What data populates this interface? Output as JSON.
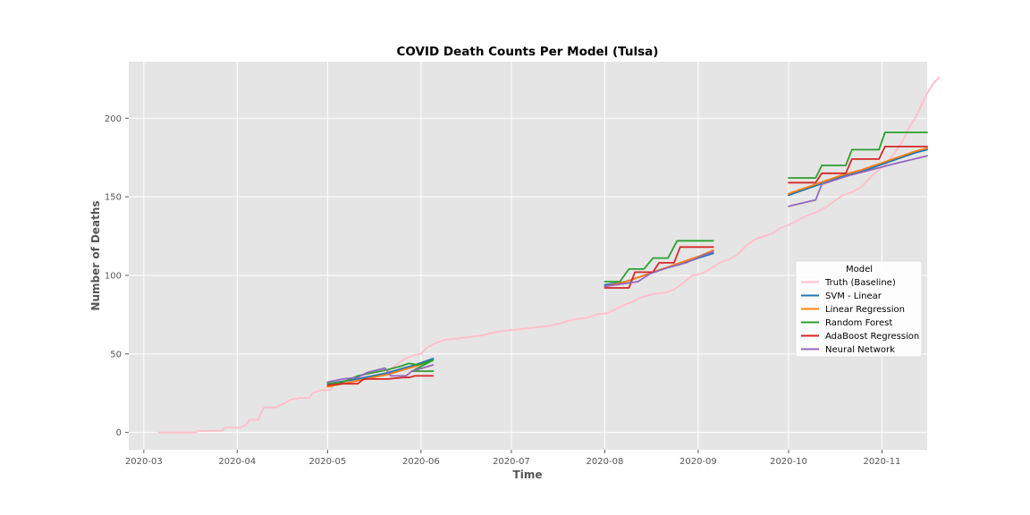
{
  "chart_data": {
    "type": "line",
    "title": "COVID Death Counts Per Model (Tulsa)",
    "xlabel": "Time",
    "ylabel": "Number of Deaths",
    "x_type": "date",
    "xlim": [
      "2020-02-25",
      "2020-11-16"
    ],
    "ylim": [
      -11,
      236
    ],
    "grid": true,
    "x_ticks": [
      "2020-03",
      "2020-04",
      "2020-05",
      "2020-06",
      "2020-07",
      "2020-08",
      "2020-09",
      "2020-10",
      "2020-11"
    ],
    "x_tick_dates": [
      "2020-03-01",
      "2020-04-01",
      "2020-05-01",
      "2020-06-01",
      "2020-07-01",
      "2020-08-01",
      "2020-09-01",
      "2020-10-01",
      "2020-11-01"
    ],
    "y_ticks": [
      0,
      50,
      100,
      150,
      200
    ],
    "legend": {
      "title": "Model",
      "position": "right"
    },
    "colors": {
      "background": "#e5e5e5",
      "grid": "#ffffff",
      "truth": "#ffc0cb",
      "svm": "#1f77b4",
      "linear": "#ff7f0e",
      "rf": "#2ca02c",
      "ada": "#d62728",
      "nn": "#9467bd"
    },
    "series": [
      {
        "name": "Truth (Baseline)",
        "color": "#ffc0cb",
        "points": [
          [
            "2020-03-06",
            0
          ],
          [
            "2020-03-18",
            0
          ],
          [
            "2020-03-19",
            1
          ],
          [
            "2020-03-26",
            1
          ],
          [
            "2020-03-27",
            1
          ],
          [
            "2020-03-28",
            3
          ],
          [
            "2020-04-02",
            3
          ],
          [
            "2020-04-04",
            5
          ],
          [
            "2020-04-05",
            8
          ],
          [
            "2020-04-08",
            8
          ],
          [
            "2020-04-09",
            13
          ],
          [
            "2020-04-10",
            16
          ],
          [
            "2020-04-14",
            16
          ],
          [
            "2020-04-16",
            18
          ],
          [
            "2020-04-19",
            21
          ],
          [
            "2020-04-22",
            22
          ],
          [
            "2020-04-25",
            22
          ],
          [
            "2020-04-26",
            25
          ],
          [
            "2020-04-29",
            27
          ],
          [
            "2020-05-02",
            27
          ],
          [
            "2020-05-03",
            31
          ],
          [
            "2020-05-06",
            32
          ],
          [
            "2020-05-10",
            33
          ],
          [
            "2020-05-13",
            35
          ],
          [
            "2020-05-17",
            36
          ],
          [
            "2020-05-20",
            37
          ],
          [
            "2020-05-23",
            42
          ],
          [
            "2020-05-26",
            46
          ],
          [
            "2020-05-29",
            49
          ],
          [
            "2020-06-01",
            50
          ],
          [
            "2020-06-03",
            54
          ],
          [
            "2020-06-06",
            57
          ],
          [
            "2020-06-09",
            59
          ],
          [
            "2020-06-14",
            60
          ],
          [
            "2020-06-18",
            61
          ],
          [
            "2020-06-22",
            62
          ],
          [
            "2020-06-26",
            64
          ],
          [
            "2020-06-30",
            65
          ],
          [
            "2020-07-05",
            66
          ],
          [
            "2020-07-10",
            67
          ],
          [
            "2020-07-14",
            68
          ],
          [
            "2020-07-18",
            70
          ],
          [
            "2020-07-22",
            72
          ],
          [
            "2020-07-26",
            73
          ],
          [
            "2020-07-29",
            75
          ],
          [
            "2020-08-02",
            76
          ],
          [
            "2020-08-06",
            80
          ],
          [
            "2020-08-10",
            83
          ],
          [
            "2020-08-13",
            86
          ],
          [
            "2020-08-17",
            88
          ],
          [
            "2020-08-21",
            89
          ],
          [
            "2020-08-24",
            91
          ],
          [
            "2020-08-27",
            95
          ],
          [
            "2020-08-30",
            100
          ],
          [
            "2020-09-02",
            101
          ],
          [
            "2020-09-05",
            104
          ],
          [
            "2020-09-08",
            108
          ],
          [
            "2020-09-11",
            110
          ],
          [
            "2020-09-14",
            113
          ],
          [
            "2020-09-17",
            119
          ],
          [
            "2020-09-20",
            123
          ],
          [
            "2020-09-23",
            125
          ],
          [
            "2020-09-26",
            127
          ],
          [
            "2020-09-28",
            130
          ],
          [
            "2020-10-01",
            132
          ],
          [
            "2020-10-04",
            135
          ],
          [
            "2020-10-07",
            138
          ],
          [
            "2020-10-10",
            140
          ],
          [
            "2020-10-13",
            143
          ],
          [
            "2020-10-16",
            147
          ],
          [
            "2020-10-19",
            151
          ],
          [
            "2020-10-22",
            153
          ],
          [
            "2020-10-25",
            156
          ],
          [
            "2020-10-27",
            160
          ],
          [
            "2020-10-29",
            164
          ],
          [
            "2020-10-31",
            167
          ],
          [
            "2020-11-02",
            170
          ],
          [
            "2020-11-04",
            175
          ],
          [
            "2020-11-06",
            180
          ],
          [
            "2020-11-08",
            186
          ],
          [
            "2020-11-10",
            194
          ],
          [
            "2020-11-12",
            200
          ],
          [
            "2020-11-14",
            208
          ],
          [
            "2020-11-16",
            216
          ],
          [
            "2020-11-18",
            222
          ],
          [
            "2020-11-20",
            226
          ]
        ]
      },
      {
        "name": "SVM - Linear",
        "color": "#1f77b4",
        "segments": [
          [
            [
              "2020-05-01",
              31
            ],
            [
              "2020-05-11",
              34
            ],
            [
              "2020-05-21",
              38
            ],
            [
              "2020-05-30",
              43
            ],
            [
              "2020-06-05",
              47
            ]
          ],
          [
            [
              "2020-08-01",
              94
            ],
            [
              "2020-08-08",
              96
            ],
            [
              "2020-08-14",
              100
            ],
            [
              "2020-08-20",
              104
            ],
            [
              "2020-08-26",
              107
            ],
            [
              "2020-09-01",
              111
            ],
            [
              "2020-09-06",
              114
            ]
          ],
          [
            [
              "2020-10-01",
              151
            ],
            [
              "2020-10-07",
              155
            ],
            [
              "2020-10-13",
              159
            ],
            [
              "2020-10-19",
              163
            ],
            [
              "2020-10-25",
              166
            ],
            [
              "2020-10-31",
              170
            ],
            [
              "2020-11-06",
              174
            ],
            [
              "2020-11-12",
              178
            ],
            [
              "2020-11-16",
              180
            ]
          ]
        ]
      },
      {
        "name": "Linear Regression",
        "color": "#ff7f0e",
        "segments": [
          [
            [
              "2020-05-01",
              29
            ],
            [
              "2020-05-11",
              33
            ],
            [
              "2020-05-21",
              37
            ],
            [
              "2020-05-30",
              42
            ],
            [
              "2020-06-05",
              46
            ]
          ],
          [
            [
              "2020-08-01",
              93
            ],
            [
              "2020-08-08",
              96
            ],
            [
              "2020-08-14",
              100
            ],
            [
              "2020-08-20",
              104
            ],
            [
              "2020-08-26",
              108
            ],
            [
              "2020-09-01",
              112
            ],
            [
              "2020-09-06",
              116
            ]
          ],
          [
            [
              "2020-10-01",
              152
            ],
            [
              "2020-10-07",
              156
            ],
            [
              "2020-10-13",
              160
            ],
            [
              "2020-10-19",
              164
            ],
            [
              "2020-10-25",
              167
            ],
            [
              "2020-10-31",
              171
            ],
            [
              "2020-11-06",
              175
            ],
            [
              "2020-11-12",
              179
            ],
            [
              "2020-11-16",
              181
            ]
          ]
        ]
      },
      {
        "name": "Random Forest",
        "color": "#2ca02c",
        "segments": [
          [
            [
              "2020-05-01",
              31
            ],
            [
              "2020-05-06",
              32
            ],
            [
              "2020-05-11",
              36
            ],
            [
              "2020-05-16",
              38
            ],
            [
              "2020-05-21",
              40
            ],
            [
              "2020-05-25",
              42
            ],
            [
              "2020-05-28",
              44
            ],
            [
              "2020-05-31",
              43
            ],
            [
              "2020-06-05",
              46
            ],
            [
              "2020-05-29",
              39
            ],
            [
              "2020-06-05",
              39
            ]
          ],
          [
            [
              "2020-08-01",
              96
            ],
            [
              "2020-08-06",
              96
            ],
            [
              "2020-08-09",
              104
            ],
            [
              "2020-08-14",
              104
            ],
            [
              "2020-08-17",
              111
            ],
            [
              "2020-08-22",
              111
            ],
            [
              "2020-08-25",
              122
            ],
            [
              "2020-09-06",
              122
            ]
          ],
          [
            [
              "2020-10-01",
              162
            ],
            [
              "2020-10-10",
              162
            ],
            [
              "2020-10-12",
              170
            ],
            [
              "2020-10-20",
              170
            ],
            [
              "2020-10-22",
              180
            ],
            [
              "2020-10-31",
              180
            ],
            [
              "2020-11-02",
              191
            ],
            [
              "2020-11-16",
              191
            ]
          ]
        ]
      },
      {
        "name": "AdaBoost Regression",
        "color": "#d62728",
        "segments": [
          [
            [
              "2020-05-01",
              30
            ],
            [
              "2020-05-06",
              31
            ],
            [
              "2020-05-11",
              31
            ],
            [
              "2020-05-13",
              34
            ],
            [
              "2020-05-21",
              34
            ],
            [
              "2020-05-26",
              35
            ],
            [
              "2020-05-28",
              35
            ],
            [
              "2020-05-30",
              36
            ],
            [
              "2020-06-05",
              36
            ]
          ],
          [
            [
              "2020-08-01",
              92
            ],
            [
              "2020-08-09",
              92
            ],
            [
              "2020-08-11",
              102
            ],
            [
              "2020-08-17",
              102
            ],
            [
              "2020-08-19",
              108
            ],
            [
              "2020-08-24",
              108
            ],
            [
              "2020-08-26",
              118
            ],
            [
              "2020-09-06",
              118
            ]
          ],
          [
            [
              "2020-10-01",
              159
            ],
            [
              "2020-10-10",
              159
            ],
            [
              "2020-10-12",
              165
            ],
            [
              "2020-10-20",
              165
            ],
            [
              "2020-10-22",
              174
            ],
            [
              "2020-10-31",
              174
            ],
            [
              "2020-11-02",
              182
            ],
            [
              "2020-11-16",
              182
            ]
          ]
        ]
      },
      {
        "name": "Neural Network",
        "color": "#9467bd",
        "segments": [
          [
            [
              "2020-05-01",
              32
            ],
            [
              "2020-05-06",
              34
            ],
            [
              "2020-05-11",
              35
            ],
            [
              "2020-05-14",
              38
            ],
            [
              "2020-05-20",
              41
            ],
            [
              "2020-05-22",
              36
            ],
            [
              "2020-05-27",
              36
            ],
            [
              "2020-05-29",
              39
            ],
            [
              "2020-06-05",
              43
            ]
          ],
          [
            [
              "2020-08-01",
              93
            ],
            [
              "2020-08-12",
              96
            ],
            [
              "2020-08-16",
              101
            ],
            [
              "2020-08-22",
              105
            ],
            [
              "2020-08-28",
              108
            ],
            [
              "2020-09-03",
              113
            ],
            [
              "2020-09-06",
              115
            ]
          ],
          [
            [
              "2020-10-01",
              144
            ],
            [
              "2020-10-10",
              148
            ],
            [
              "2020-10-12",
              158
            ],
            [
              "2020-10-20",
              163
            ],
            [
              "2020-10-28",
              167
            ],
            [
              "2020-11-05",
              171
            ],
            [
              "2020-11-16",
              176
            ]
          ]
        ]
      }
    ]
  }
}
